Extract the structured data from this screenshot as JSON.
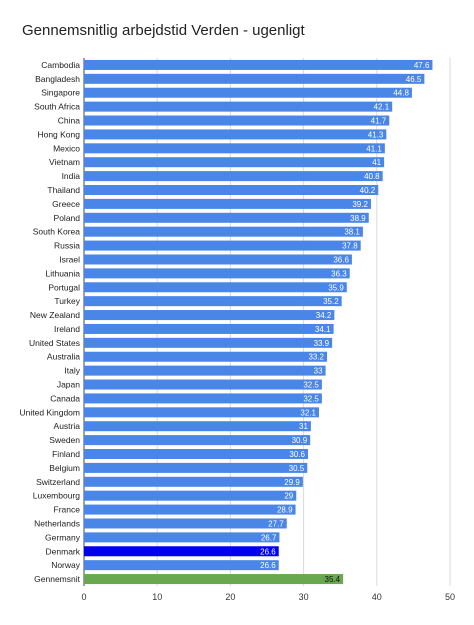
{
  "chart_data": {
    "type": "bar",
    "orientation": "horizontal",
    "title": "Gennemsnitlig arbejdstid Verden - ugenligt",
    "xlabel": "",
    "ylabel": "",
    "xlim": [
      0,
      50
    ],
    "x_ticks": [
      0,
      10,
      20,
      30,
      40,
      50
    ],
    "grid": true,
    "categories": [
      "Cambodia",
      "Bangladesh",
      "Singapore",
      "South Africa",
      "China",
      "Hong Kong",
      "Mexico",
      "Vietnam",
      "India",
      "Thailand",
      "Greece",
      "Poland",
      "South Korea",
      "Russia",
      "Israel",
      "Lithuania",
      "Portugal",
      "Turkey",
      "New Zealand",
      "Ireland",
      "United States",
      "Australia",
      "Italy",
      "Japan",
      "Canada",
      "United Kingdom",
      "Austria",
      "Sweden",
      "Finland",
      "Belgium",
      "Switzerland",
      "Luxembourg",
      "France",
      "Netherlands",
      "Germany",
      "Denmark",
      "Norway",
      "Gennemsnit"
    ],
    "values": [
      47.6,
      46.5,
      44.8,
      42.1,
      41.7,
      41.3,
      41.1,
      41,
      40.8,
      40.2,
      39.2,
      38.9,
      38.1,
      37.8,
      36.6,
      36.3,
      35.9,
      35.2,
      34.2,
      34.1,
      33.9,
      33.2,
      33,
      32.5,
      32.5,
      32.1,
      31,
      30.9,
      30.6,
      30.5,
      29.9,
      29,
      28.9,
      27.7,
      26.7,
      26.6,
      26.6,
      35.4
    ],
    "highlight": {
      "Denmark": "#0000ee",
      "Gennemsnit": "#6aa84f"
    },
    "colors": {
      "default_bar": "#4a86e8",
      "grid": "#d9d9d9",
      "axis": "#444444"
    }
  }
}
